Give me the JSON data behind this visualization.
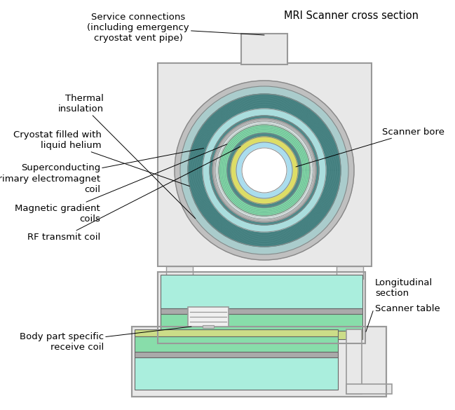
{
  "title": "MRI Scanner cross section",
  "background_color": "#ffffff",
  "colors": {
    "housing_fill": "#e8e8e8",
    "housing_edge": "#999999",
    "outer_casing": "#c0c0c0",
    "thermal_insul": "#aacccc",
    "cryostat_dark": "#4d8888",
    "helium_cyan": "#aadddd",
    "gray_ring": "#b0b0b0",
    "gradient_green": "#88ddaa",
    "rf_yellow": "#dddd66",
    "bore_cyan": "#aaddee",
    "bore_white": "#ffffff",
    "layer_cyan": "#aaeedd",
    "layer_green": "#88ddaa",
    "layer_yellow": "#ccdd88",
    "layer_gray": "#aaaaaa"
  },
  "labels": {
    "service_connections": "Service connections\n(including emergency\ncryostat vent pipe)",
    "thermal_insulation": "Thermal\ninsulation",
    "cryostat": "Cryostat filled with\nliquid helium",
    "superconducting": "Superconducting\nprimary electromagnet\ncoil",
    "magnetic_gradient": "Magnetic gradient\ncoils",
    "rf_transmit": "RF transmit coil",
    "scanner_bore": "Scanner bore",
    "longitudinal": "Longitudinal\nsection",
    "scanner_table": "Scanner table",
    "body_part": "Body part specific\nreceive coil"
  },
  "fontsize": 9.5
}
